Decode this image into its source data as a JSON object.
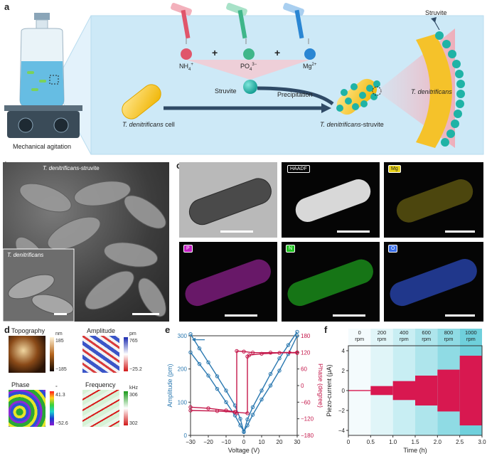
{
  "panels": {
    "a": "a",
    "b": "b",
    "c": "c",
    "d": "d",
    "e": "e",
    "f": "f"
  },
  "a": {
    "mech_label": "Mechanical agitation",
    "ions": [
      "NH",
      "PO",
      "Mg"
    ],
    "ion_sup": [
      "4",
      "4",
      "2+"
    ],
    "ion_sup2": [
      "+",
      "3−",
      ""
    ],
    "plus": "+",
    "struvite_center": "Struvite",
    "precipitation": "Precipitation",
    "cell_label_italic": "T. denitrificans",
    "cell_label_rest": " cell",
    "composite_italic": "T. denitrificans",
    "composite_rest": "-struvite",
    "zoom_struvite": "Struvite",
    "zoom_cell": "T. denitrificans",
    "colors": {
      "nh4": "#e0566b",
      "po4": "#3fb68a",
      "mg": "#2a86d3",
      "struvite": "#1fb3a6",
      "cell": "#f2c12e",
      "arrow": "#2f4a66"
    }
  },
  "b": {
    "label_top_italic": "T. denitrificans",
    "label_top_rest": "-struvite",
    "inset_label": "T. denitrificans"
  },
  "c": {
    "tags": [
      "HAADF",
      "Mg",
      "P",
      "N",
      "O"
    ],
    "tag_colors": {
      "Mg": "#e8d21a",
      "P": "#c21fc2",
      "N": "#22c322",
      "O": "#3a6ee6"
    }
  },
  "d": {
    "maps": [
      {
        "title": "Topography",
        "unit": "nm",
        "max": "185",
        "min": "−185"
      },
      {
        "title": "Amplitude",
        "unit": "pm",
        "max": "765",
        "min": "−25.2"
      },
      {
        "title": "Phase",
        "unit": "°",
        "max": "41.3",
        "min": "−52.6"
      },
      {
        "title": "Frequency",
        "unit": "kHz",
        "max": "306",
        "min": "302"
      }
    ]
  },
  "chart_data": [
    {
      "panel": "e",
      "type": "line",
      "xlabel": "Voltage (V)",
      "ylabel": "Amplitude (pm)",
      "y2label": "Phase (degree)",
      "xlim": [
        -30,
        30
      ],
      "ylim": [
        0,
        300
      ],
      "y2lim": [
        -180,
        180
      ],
      "xticks": [
        -30,
        -20,
        -10,
        0,
        10,
        20,
        30
      ],
      "yticks": [
        0,
        100,
        200,
        300
      ],
      "y2ticks": [
        -180,
        -120,
        -60,
        0,
        60,
        120,
        180
      ],
      "colors": {
        "amplitude": "#2a78b0",
        "phase": "#c4184b"
      },
      "series": [
        {
          "axis": "left",
          "x": [
            -30,
            -25,
            -20,
            -15,
            -10,
            -5,
            -2,
            0,
            2,
            5,
            10,
            15,
            20,
            25,
            30
          ],
          "values": [
            305,
            262,
            220,
            178,
            135,
            90,
            50,
            10,
            48,
            85,
            135,
            185,
            232,
            272,
            312
          ]
        },
        {
          "axis": "left",
          "x": [
            -30,
            -25,
            -20,
            -15,
            -10,
            -5,
            -2,
            0,
            2,
            5,
            10,
            15,
            20,
            25,
            30
          ],
          "values": [
            250,
            215,
            180,
            140,
            100,
            60,
            30,
            12,
            30,
            62,
            108,
            150,
            195,
            245,
            300
          ]
        },
        {
          "axis": "right",
          "x": [
            -30,
            -20,
            -10,
            -5,
            -4,
            -4,
            0,
            5,
            15,
            30
          ],
          "values": [
            -78,
            -82,
            -90,
            -95,
            -100,
            125,
            123,
            119,
            119,
            118
          ]
        },
        {
          "axis": "right",
          "x": [
            30,
            20,
            10,
            3,
            2,
            2,
            -5,
            -15,
            -30
          ],
          "values": [
            120,
            118,
            115,
            110,
            105,
            -100,
            -96,
            -92,
            -90
          ]
        }
      ]
    },
    {
      "panel": "f",
      "type": "area",
      "xlabel": "Time (h)",
      "ylabel": "Piezo-current (μA)",
      "xlim": [
        0,
        3.0
      ],
      "ylim": [
        -4.5,
        4.5
      ],
      "xticks": [
        "0",
        "0.5",
        "1.0",
        "1.5",
        "2.0",
        "2.5",
        "3.0"
      ],
      "yticks": [
        -4,
        -2,
        0,
        2,
        4
      ],
      "color": "#d81850",
      "segments": [
        {
          "rpm": "0",
          "rpm_unit": "rpm",
          "start": 0,
          "end": 0.5,
          "amp": 0.05
        },
        {
          "rpm": "200",
          "rpm_unit": "rpm",
          "start": 0.5,
          "end": 1.0,
          "amp": 0.45
        },
        {
          "rpm": "400",
          "rpm_unit": "rpm",
          "start": 1.0,
          "end": 1.5,
          "amp": 0.95
        },
        {
          "rpm": "600",
          "rpm_unit": "rpm",
          "start": 1.5,
          "end": 2.0,
          "amp": 1.5
        },
        {
          "rpm": "800",
          "rpm_unit": "rpm",
          "start": 2.0,
          "end": 2.5,
          "amp": 2.1
        },
        {
          "rpm": "1000",
          "rpm_unit": "rpm",
          "start": 2.5,
          "end": 3.0,
          "amp": 3.5
        }
      ]
    }
  ]
}
